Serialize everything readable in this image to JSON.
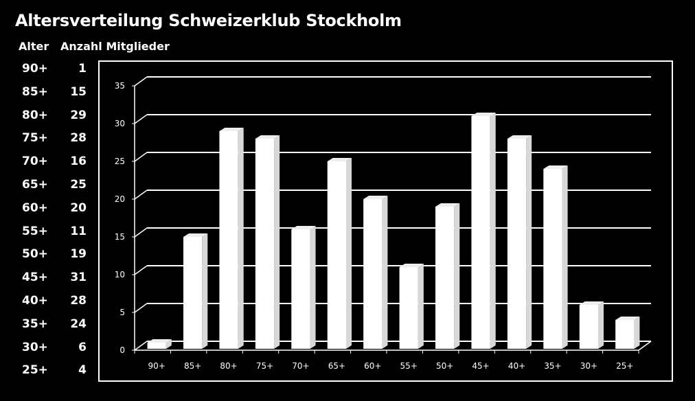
{
  "title": "Altersverteilung Schweizerklub Stockholm",
  "table": {
    "header_age": "Alter",
    "header_count": "Anzahl Mitglieder",
    "rows": [
      {
        "age": "90+",
        "count": "1"
      },
      {
        "age": "85+",
        "count": "15"
      },
      {
        "age": "80+",
        "count": "29"
      },
      {
        "age": "75+",
        "count": "28"
      },
      {
        "age": "70+",
        "count": "16"
      },
      {
        "age": "65+",
        "count": "25"
      },
      {
        "age": "60+",
        "count": "20"
      },
      {
        "age": "55+",
        "count": "11"
      },
      {
        "age": "50+",
        "count": "19"
      },
      {
        "age": "45+",
        "count": "31"
      },
      {
        "age": "40+",
        "count": "28"
      },
      {
        "age": "35+",
        "count": "24"
      },
      {
        "age": "30+",
        "count": "6"
      },
      {
        "age": "25+",
        "count": "4"
      }
    ]
  },
  "chart_data": {
    "type": "bar",
    "categories": [
      "90+",
      "85+",
      "80+",
      "75+",
      "70+",
      "65+",
      "60+",
      "55+",
      "50+",
      "45+",
      "40+",
      "35+",
      "30+",
      "25+"
    ],
    "values": [
      1,
      15,
      29,
      28,
      16,
      25,
      20,
      11,
      19,
      31,
      28,
      24,
      6,
      4
    ],
    "ylim": [
      0,
      35
    ],
    "yticks": [
      0,
      5,
      10,
      15,
      20,
      25,
      30,
      35
    ],
    "grid": true,
    "style": "3d",
    "colors": {
      "background": "#000000",
      "bar": "#ffffff",
      "grid": "#ffffff",
      "text": "#ffffff"
    }
  }
}
